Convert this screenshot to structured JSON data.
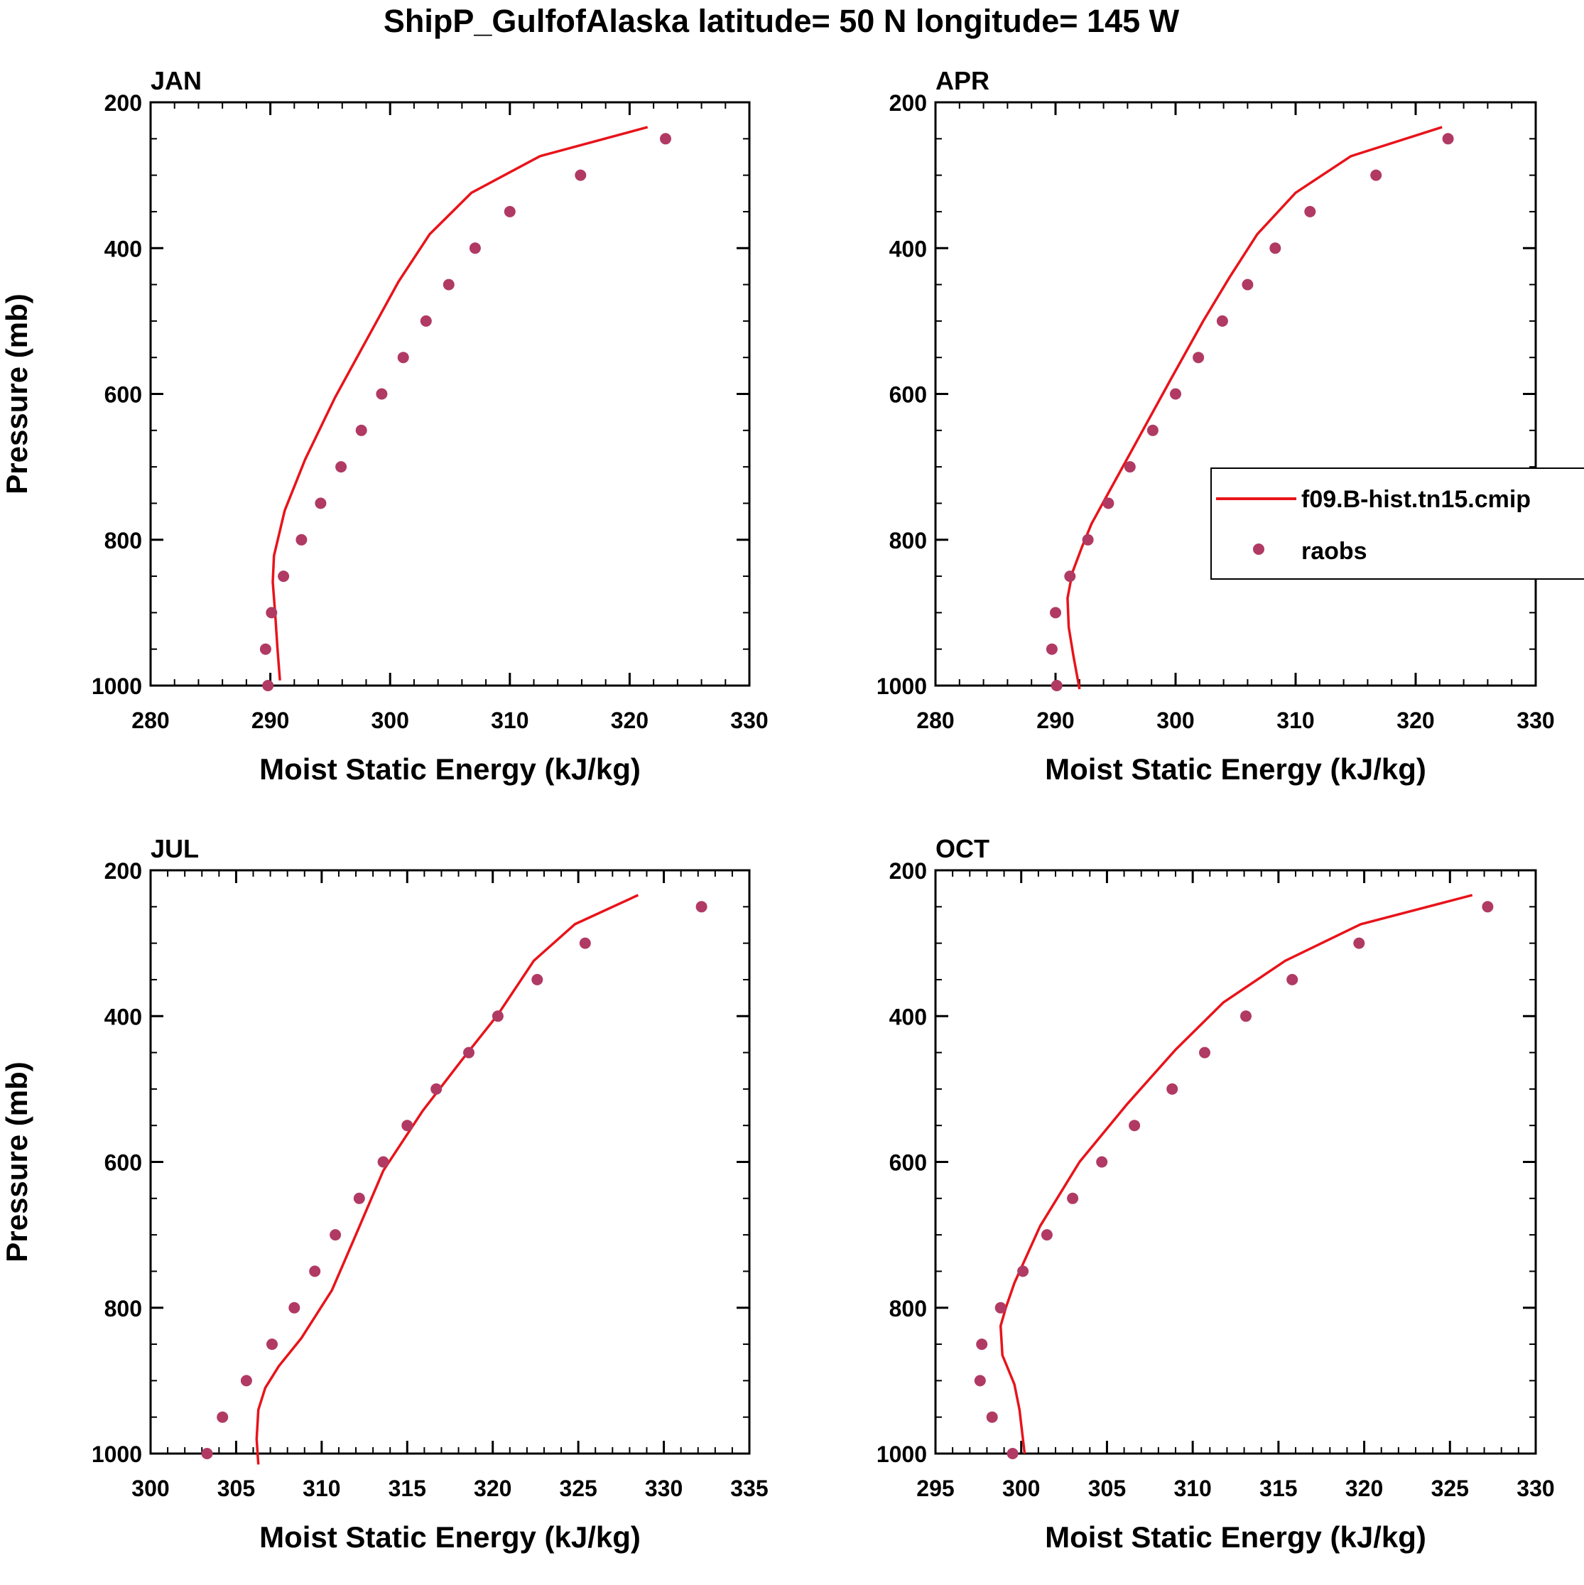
{
  "figure": {
    "title": "ShipP_GulfofAlaska  latitude= 50 N longitude= 145 W"
  },
  "colors": {
    "model_line": "#e8131a",
    "obs_marker": "#b03a63",
    "axis": "#000000"
  },
  "legend": {
    "model_label": "f09.B-hist.tn15.cmip",
    "obs_label": "raobs"
  },
  "chart_data": [
    {
      "type": "line",
      "panel": "JAN",
      "title": "JAN",
      "xlabel": "Moist Static Energy (kJ/kg)",
      "ylabel": "Pressure (mb)",
      "xlim": [
        280,
        330
      ],
      "ylim": [
        1000,
        200
      ],
      "y_inverted": true,
      "xticks": [
        280,
        290,
        300,
        310,
        320,
        330
      ],
      "yticks": [
        200,
        400,
        600,
        800,
        1000
      ],
      "yticks_minor_step": 50,
      "grid": false,
      "series": [
        {
          "name": "f09.B-hist.tn15.cmip",
          "kind": "line",
          "points": [
            [
              321.5,
              234
            ],
            [
              312.5,
              274
            ],
            [
              306.8,
              324
            ],
            [
              303.3,
              381
            ],
            [
              300.7,
              446
            ],
            [
              298.3,
              518
            ],
            [
              295.4,
              605
            ],
            [
              292.9,
              690
            ],
            [
              291.2,
              760
            ],
            [
              290.3,
              822
            ],
            [
              290.2,
              858
            ],
            [
              290.4,
              900
            ],
            [
              290.6,
              950
            ],
            [
              290.8,
              993
            ]
          ]
        },
        {
          "name": "raobs",
          "kind": "scatter",
          "points": [
            [
              323.0,
              250
            ],
            [
              315.9,
              300
            ],
            [
              310.0,
              350
            ],
            [
              307.1,
              400
            ],
            [
              304.9,
              450
            ],
            [
              303.0,
              500
            ],
            [
              301.1,
              550
            ],
            [
              299.3,
              600
            ],
            [
              297.6,
              650
            ],
            [
              295.9,
              700
            ],
            [
              294.2,
              750
            ],
            [
              292.6,
              800
            ],
            [
              291.1,
              850
            ],
            [
              290.1,
              900
            ],
            [
              289.6,
              950
            ],
            [
              289.8,
              1000
            ]
          ]
        }
      ]
    },
    {
      "type": "line",
      "panel": "APR",
      "title": "APR",
      "xlabel": "Moist Static Energy (kJ/kg)",
      "ylabel": "",
      "xlim": [
        280,
        330
      ],
      "ylim": [
        1000,
        200
      ],
      "y_inverted": true,
      "xticks": [
        280,
        290,
        300,
        310,
        320,
        330
      ],
      "yticks": [
        200,
        400,
        600,
        800,
        1000
      ],
      "yticks_minor_step": 50,
      "grid": false,
      "series": [
        {
          "name": "f09.B-hist.tn15.cmip",
          "kind": "line",
          "points": [
            [
              322.2,
              234
            ],
            [
              314.6,
              274
            ],
            [
              310.0,
              324
            ],
            [
              306.8,
              381
            ],
            [
              304.5,
              440
            ],
            [
              302.3,
              500
            ],
            [
              299.6,
              580
            ],
            [
              296.8,
              664
            ],
            [
              294.5,
              733
            ],
            [
              293.0,
              778
            ],
            [
              292.2,
              810
            ],
            [
              291.4,
              845
            ],
            [
              291.0,
              880
            ],
            [
              291.1,
              920
            ],
            [
              291.5,
              960
            ],
            [
              292.0,
              1005
            ]
          ]
        },
        {
          "name": "raobs",
          "kind": "scatter",
          "points": [
            [
              322.7,
              250
            ],
            [
              316.7,
              300
            ],
            [
              311.2,
              350
            ],
            [
              308.3,
              400
            ],
            [
              306.0,
              450
            ],
            [
              303.9,
              500
            ],
            [
              301.9,
              550
            ],
            [
              300.0,
              600
            ],
            [
              298.1,
              650
            ],
            [
              296.2,
              700
            ],
            [
              294.4,
              750
            ],
            [
              292.7,
              800
            ],
            [
              291.2,
              850
            ],
            [
              290.0,
              900
            ],
            [
              289.7,
              950
            ],
            [
              290.1,
              1000
            ]
          ]
        }
      ]
    },
    {
      "type": "line",
      "panel": "JUL",
      "title": "JUL",
      "xlabel": "Moist Static Energy (kJ/kg)",
      "ylabel": "Pressure (mb)",
      "xlim": [
        300,
        335
      ],
      "ylim": [
        1000,
        200
      ],
      "y_inverted": true,
      "xticks": [
        300,
        305,
        310,
        315,
        320,
        325,
        330,
        335
      ],
      "yticks": [
        200,
        400,
        600,
        800,
        1000
      ],
      "yticks_minor_step": 50,
      "grid": false,
      "series": [
        {
          "name": "f09.B-hist.tn15.cmip",
          "kind": "line",
          "points": [
            [
              328.5,
              234
            ],
            [
              324.8,
              274
            ],
            [
              322.4,
              324
            ],
            [
              320.3,
              398
            ],
            [
              318.2,
              460
            ],
            [
              315.9,
              530
            ],
            [
              313.6,
              612
            ],
            [
              312.0,
              700
            ],
            [
              310.6,
              776
            ],
            [
              308.8,
              842
            ],
            [
              307.5,
              880
            ],
            [
              306.7,
              910
            ],
            [
              306.3,
              940
            ],
            [
              306.2,
              980
            ],
            [
              306.3,
              1015
            ]
          ]
        },
        {
          "name": "raobs",
          "kind": "scatter",
          "points": [
            [
              332.2,
              250
            ],
            [
              325.4,
              300
            ],
            [
              322.6,
              350
            ],
            [
              320.3,
              400
            ],
            [
              318.6,
              450
            ],
            [
              316.7,
              500
            ],
            [
              315.0,
              550
            ],
            [
              313.6,
              600
            ],
            [
              312.2,
              650
            ],
            [
              310.8,
              700
            ],
            [
              309.6,
              750
            ],
            [
              308.4,
              800
            ],
            [
              307.1,
              850
            ],
            [
              305.6,
              900
            ],
            [
              304.2,
              950
            ],
            [
              303.3,
              1000
            ]
          ]
        }
      ]
    },
    {
      "type": "line",
      "panel": "OCT",
      "title": "OCT",
      "xlabel": "Moist Static Energy (kJ/kg)",
      "ylabel": "",
      "xlim": [
        295,
        330
      ],
      "ylim": [
        1000,
        200
      ],
      "y_inverted": true,
      "xticks": [
        295,
        300,
        305,
        310,
        315,
        320,
        325,
        330
      ],
      "yticks": [
        200,
        400,
        600,
        800,
        1000
      ],
      "yticks_minor_step": 50,
      "grid": false,
      "series": [
        {
          "name": "f09.B-hist.tn15.cmip",
          "kind": "line",
          "points": [
            [
              326.3,
              234
            ],
            [
              319.8,
              274
            ],
            [
              315.4,
              324
            ],
            [
              311.8,
              381
            ],
            [
              309.0,
              446
            ],
            [
              306.2,
              520
            ],
            [
              303.4,
              600
            ],
            [
              301.1,
              688
            ],
            [
              299.6,
              766
            ],
            [
              299.1,
              800
            ],
            [
              298.8,
              825
            ],
            [
              298.9,
              865
            ],
            [
              299.6,
              905
            ],
            [
              299.9,
              940
            ],
            [
              300.2,
              1000
            ]
          ]
        },
        {
          "name": "raobs",
          "kind": "scatter",
          "points": [
            [
              327.2,
              250
            ],
            [
              319.7,
              300
            ],
            [
              315.8,
              350
            ],
            [
              313.1,
              400
            ],
            [
              310.7,
              450
            ],
            [
              308.8,
              500
            ],
            [
              306.6,
              550
            ],
            [
              304.7,
              600
            ],
            [
              303.0,
              650
            ],
            [
              301.5,
              700
            ],
            [
              300.1,
              750
            ],
            [
              298.8,
              800
            ],
            [
              297.7,
              850
            ],
            [
              297.6,
              900
            ],
            [
              298.3,
              950
            ],
            [
              299.5,
              1000
            ]
          ]
        }
      ]
    }
  ]
}
